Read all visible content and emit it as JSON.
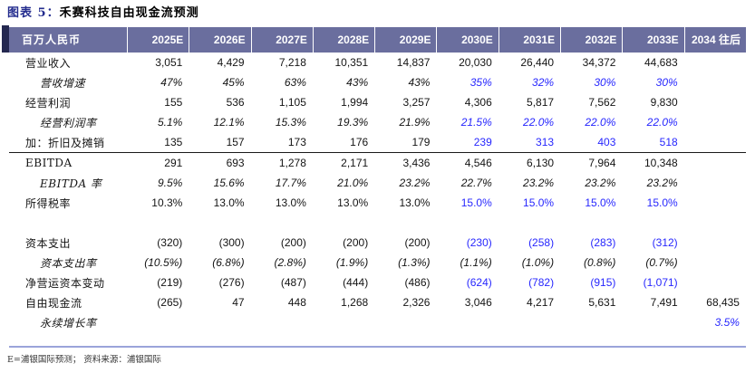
{
  "title": {
    "prefix": "图表 5：",
    "text": "禾赛科技自由现金流预测"
  },
  "colors": {
    "header_bg": "#6a6e9e",
    "accent_blue": "#2727fe",
    "title_navy": "#232c8e",
    "notch_navy": "#242850",
    "bottom_rule": "#9aa4da"
  },
  "table": {
    "unit_header": "百万人民币",
    "columns": [
      "2025E",
      "2026E",
      "2027E",
      "2028E",
      "2029E",
      "2030E",
      "2031E",
      "2032E",
      "2033E",
      "2034 往后"
    ],
    "rows": [
      {
        "label": "营业收入",
        "style": "main",
        "divider_below": false,
        "values": [
          "3,051",
          "4,429",
          "7,218",
          "10,351",
          "14,837",
          "20,030",
          "26,440",
          "34,372",
          "44,683",
          ""
        ],
        "blue_cols": []
      },
      {
        "label": "营收增速",
        "style": "sub",
        "divider_below": false,
        "values": [
          "47%",
          "45%",
          "63%",
          "43%",
          "43%",
          "35%",
          "32%",
          "30%",
          "30%",
          ""
        ],
        "blue_cols": [
          5,
          6,
          7,
          8
        ]
      },
      {
        "label": "经营利润",
        "style": "main",
        "divider_below": false,
        "values": [
          "155",
          "536",
          "1,105",
          "1,994",
          "3,257",
          "4,306",
          "5,817",
          "7,562",
          "9,830",
          ""
        ],
        "blue_cols": []
      },
      {
        "label": "经营利润率",
        "style": "sub",
        "divider_below": false,
        "values": [
          "5.1%",
          "12.1%",
          "15.3%",
          "19.3%",
          "21.9%",
          "21.5%",
          "22.0%",
          "22.0%",
          "22.0%",
          ""
        ],
        "blue_cols": [
          5,
          6,
          7,
          8
        ]
      },
      {
        "label": "加：折旧及摊销",
        "style": "main",
        "divider_below": true,
        "values": [
          "135",
          "157",
          "173",
          "176",
          "179",
          "239",
          "313",
          "403",
          "518",
          ""
        ],
        "blue_cols": [
          5,
          6,
          7,
          8
        ]
      },
      {
        "label": "EBITDA",
        "style": "main",
        "divider_below": false,
        "values": [
          "291",
          "693",
          "1,278",
          "2,171",
          "3,436",
          "4,546",
          "6,130",
          "7,964",
          "10,348",
          ""
        ],
        "blue_cols": []
      },
      {
        "label": "EBITDA 率",
        "style": "sub",
        "divider_below": false,
        "values": [
          "9.5%",
          "15.6%",
          "17.7%",
          "21.0%",
          "23.2%",
          "22.7%",
          "23.2%",
          "23.2%",
          "23.2%",
          ""
        ],
        "blue_cols": []
      },
      {
        "label": "所得税率",
        "style": "main",
        "divider_below": false,
        "values": [
          "10.3%",
          "13.0%",
          "13.0%",
          "13.0%",
          "13.0%",
          "15.0%",
          "15.0%",
          "15.0%",
          "15.0%",
          ""
        ],
        "blue_cols": [
          5,
          6,
          7,
          8
        ]
      },
      {
        "label": "",
        "style": "spacer",
        "divider_below": false,
        "values": [],
        "blue_cols": []
      },
      {
        "label": "资本支出",
        "style": "main",
        "divider_below": false,
        "values": [
          "(320)",
          "(300)",
          "(200)",
          "(200)",
          "(200)",
          "(230)",
          "(258)",
          "(283)",
          "(312)",
          ""
        ],
        "blue_cols": [
          5,
          6,
          7,
          8
        ]
      },
      {
        "label": "资本支出率",
        "style": "sub",
        "divider_below": false,
        "values": [
          "(10.5%)",
          "(6.8%)",
          "(2.8%)",
          "(1.9%)",
          "(1.3%)",
          "(1.1%)",
          "(1.0%)",
          "(0.8%)",
          "(0.7%)",
          ""
        ],
        "blue_cols": []
      },
      {
        "label": "净营运资本变动",
        "style": "main",
        "divider_below": false,
        "values": [
          "(219)",
          "(276)",
          "(487)",
          "(444)",
          "(486)",
          "(624)",
          "(782)",
          "(915)",
          "(1,071)",
          ""
        ],
        "blue_cols": [
          5,
          6,
          7,
          8
        ]
      },
      {
        "label": "自由现金流",
        "style": "main",
        "divider_below": false,
        "values": [
          "(265)",
          "47",
          "448",
          "1,268",
          "2,326",
          "3,046",
          "4,217",
          "5,631",
          "7,491",
          "68,435"
        ],
        "blue_cols": []
      },
      {
        "label": "永续增长率",
        "style": "sub",
        "divider_below": false,
        "values": [
          "",
          "",
          "",
          "",
          "",
          "",
          "",
          "",
          "",
          "3.5%"
        ],
        "blue_cols": [
          9
        ]
      }
    ]
  },
  "footer": {
    "text": "E=浦银国际预测；  资料来源：浦银国际"
  }
}
